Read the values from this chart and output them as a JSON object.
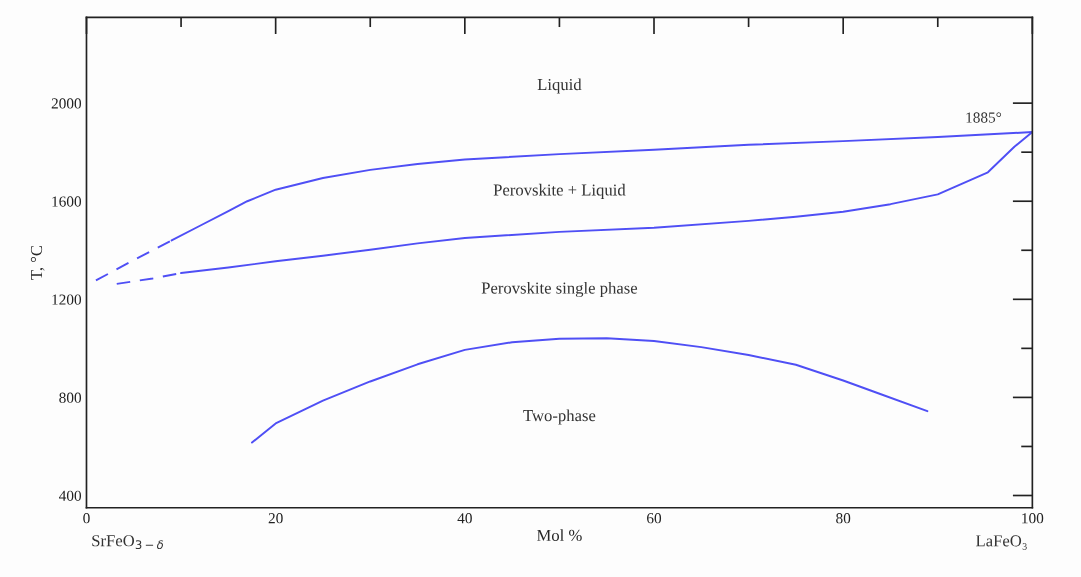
{
  "chart_data": {
    "type": "line",
    "xlabel": "Mol %",
    "ylabel": "T, °C",
    "xlim": [
      0,
      100
    ],
    "ylim": [
      350,
      2350
    ],
    "xticks": [
      0,
      {
        "value": 10,
        "label": null
      },
      20,
      {
        "value": 30,
        "label": null
      },
      40,
      {
        "value": 50,
        "label": null
      },
      60,
      {
        "value": 70,
        "label": null
      },
      80,
      {
        "value": 90,
        "label": null
      },
      100
    ],
    "yticks": [
      400,
      {
        "value": 600,
        "label": null
      },
      800,
      {
        "value": 1000,
        "label": null
      },
      1200,
      {
        "value": 1400,
        "label": null
      },
      1600,
      {
        "value": 1800,
        "label": null
      },
      2000
    ],
    "grid": false,
    "marker": "none",
    "series": [
      {
        "color": "#4f4ff5",
        "line_style": "dashed",
        "x": [
          1,
          5,
          9
        ],
        "values": [
          1277,
          1360,
          1440
        ]
      },
      {
        "color": "#4f4ff5",
        "line_style": "solid",
        "x": [
          9,
          12,
          15,
          17,
          20,
          25,
          30,
          35,
          40,
          50,
          60,
          70,
          80,
          90,
          100
        ],
        "values": [
          1440,
          1500,
          1560,
          1600,
          1647,
          1695,
          1728,
          1752,
          1770,
          1792,
          1810,
          1830,
          1845,
          1862,
          1882
        ]
      },
      {
        "color": "#4f4ff5",
        "line_style": "dashed",
        "x": [
          3.2,
          7,
          10
        ],
        "values": [
          1263,
          1285,
          1307
        ]
      },
      {
        "color": "#4f4ff5",
        "line_style": "solid",
        "x": [
          10,
          15,
          20,
          25,
          30,
          35,
          40,
          50,
          60,
          70,
          75,
          80,
          85,
          90,
          95.3,
          98.1,
          100
        ],
        "values": [
          1307,
          1330,
          1355,
          1378,
          1402,
          1428,
          1450,
          1475,
          1492,
          1520,
          1537,
          1557,
          1588,
          1628,
          1718,
          1822,
          1882
        ]
      },
      {
        "color": "#4f4ff5",
        "line_style": "solid",
        "x": [
          17.5,
          20,
          25,
          30,
          35,
          40,
          45,
          50,
          55,
          60,
          65,
          70,
          75,
          80,
          83.7,
          88.9
        ],
        "values": [
          616,
          694,
          787,
          865,
          935,
          994,
          1025,
          1039,
          1041,
          1030,
          1005,
          973,
          933,
          869,
          817,
          744
        ]
      }
    ],
    "annotations": [
      "Liquid",
      "Perovskite + Liquid",
      "Perovskite single phase",
      "Two-phase",
      {
        "text": "1885°",
        "x": 100,
        "y": 1885
      },
      "SrFeO$_{3−δ}$",
      "LaFeO₃"
    ]
  }
}
